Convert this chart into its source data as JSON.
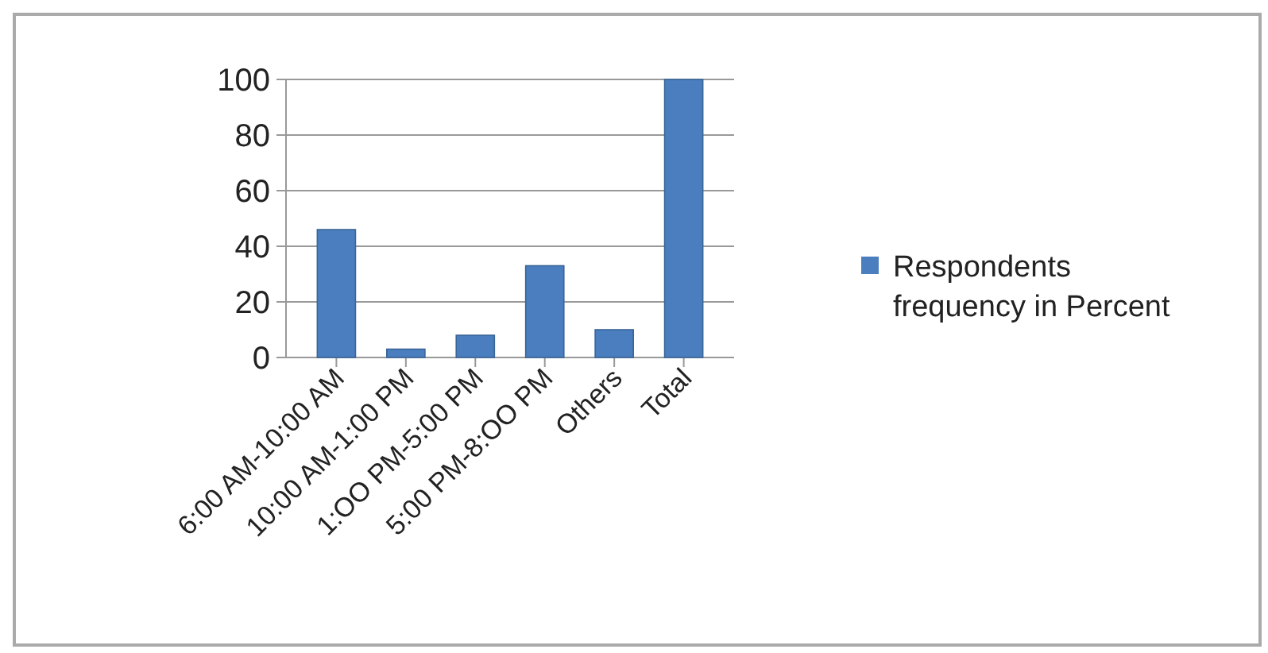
{
  "chart_data": {
    "type": "bar",
    "categories": [
      "6:00 AM-10:00 AM",
      "10:00 AM-1:00 PM",
      "1:OO PM-5:00 PM",
      "5:00 PM-8:OO PM",
      "Others",
      "Total"
    ],
    "series": [
      {
        "name": "Respondents frequency in Percent",
        "color": "#4a7ebf",
        "values": [
          46,
          3,
          8,
          33,
          10,
          100
        ]
      }
    ],
    "ylim": [
      0,
      100
    ],
    "yticks": [
      0,
      20,
      40,
      60,
      80,
      100
    ],
    "grid": "y",
    "legend": "right"
  }
}
